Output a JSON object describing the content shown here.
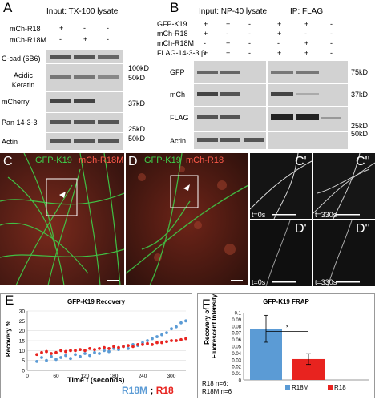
{
  "panel_a": {
    "label": "A",
    "title": "Input: TX-100 lysate",
    "rows": [
      {
        "name": "mCh-R18",
        "marks": [
          "+",
          "-",
          "-"
        ]
      },
      {
        "name": "mCh-R18M",
        "marks": [
          "-",
          "+",
          "-"
        ]
      }
    ],
    "blots": [
      "C-cad (6B6)",
      "Acidic Keratin",
      "mCherry",
      "Pan 14-3-3",
      "Actin"
    ],
    "markers": [
      "100kD",
      "50kD",
      "37kD",
      "25kD",
      "50kD"
    ]
  },
  "panel_b": {
    "label": "B",
    "title_input": "Input: NP-40 lysate",
    "title_ip": "IP: FLAG",
    "rows": [
      {
        "name": "GFP-K19",
        "marks": [
          "+",
          "+",
          "-",
          "+",
          "+",
          "-"
        ]
      },
      {
        "name": "mCh-R18",
        "marks": [
          "+",
          "-",
          "-",
          "+",
          "-",
          "-"
        ]
      },
      {
        "name": "mCh-R18M",
        "marks": [
          "-",
          "+",
          "-",
          "-",
          "+",
          "-"
        ]
      },
      {
        "name": "FLAG-14-3-3 β",
        "marks": [
          "+",
          "+",
          "-",
          "+",
          "+",
          "-"
        ]
      }
    ],
    "blots": [
      "GFP",
      "mCh",
      "FLAG",
      "Actin"
    ],
    "markers": [
      "75kD",
      "37kD",
      "25kD",
      "50kD"
    ]
  },
  "panel_c": {
    "label": "C",
    "caption_green": "GFP-K19",
    "caption_red": "mCh-R18M"
  },
  "panel_d": {
    "label": "D",
    "caption_green": "GFP-K19",
    "caption_red": "mCh-R18"
  },
  "insets": [
    {
      "label": "C'",
      "time": "t=0s"
    },
    {
      "label": "C''",
      "time": "t=330s"
    },
    {
      "label": "D'",
      "time": "t=0s"
    },
    {
      "label": "D''",
      "time": "t=330s"
    }
  ],
  "panel_e": {
    "label": "E",
    "title": "GFP-K19 Recovery",
    "ylabel": "Recovery %",
    "xlabel": "Time t (seconds)",
    "legend_a": "R18M",
    "legend_sep": ";",
    "legend_b": "R18"
  },
  "panel_f": {
    "label": "F",
    "title": "GFP-K19 FRAP",
    "ylabel": "Recovery of Fluorescent Intensity",
    "star": "*",
    "note_1": "R18 n=6;",
    "note_2": "R18M n=6"
  },
  "colors": {
    "r18m": "#5b9bd5",
    "r18": "#e8231f",
    "green": "#3fd24a",
    "red": "#ff5a4a"
  },
  "chart_data": [
    {
      "type": "scatter",
      "title": "GFP-K19 Recovery",
      "xlabel": "Time t (seconds)",
      "ylabel": "Recovery %",
      "xlim": [
        0,
        330
      ],
      "ylim": [
        0,
        30
      ],
      "x_ticks": [
        0,
        60,
        120,
        180,
        240,
        300
      ],
      "y_ticks": [
        0,
        5,
        10,
        15,
        20,
        25,
        30
      ],
      "series": [
        {
          "name": "R18M",
          "color": "#5b9bd5",
          "x": [
            20,
            30,
            40,
            50,
            60,
            70,
            80,
            90,
            100,
            110,
            120,
            130,
            140,
            150,
            160,
            170,
            180,
            190,
            200,
            210,
            220,
            230,
            240,
            250,
            260,
            270,
            280,
            290,
            300,
            310,
            320,
            330
          ],
          "y": [
            4.5,
            6.5,
            5,
            7,
            5.5,
            6.5,
            7.5,
            6,
            8,
            7,
            8.5,
            7.5,
            9,
            8.5,
            10,
            9.5,
            11,
            10.5,
            12,
            11,
            13,
            12.5,
            14,
            15,
            16,
            17,
            18,
            19,
            21,
            22,
            24,
            25
          ]
        },
        {
          "name": "R18",
          "color": "#e8231f",
          "x": [
            20,
            30,
            40,
            50,
            60,
            70,
            80,
            90,
            100,
            110,
            120,
            130,
            140,
            150,
            160,
            170,
            180,
            190,
            200,
            210,
            220,
            230,
            240,
            250,
            260,
            270,
            280,
            290,
            300,
            310,
            320,
            330
          ],
          "y": [
            8,
            9,
            9.5,
            8.5,
            9,
            10,
            9.5,
            10,
            10,
            10.5,
            10,
            11,
            10.5,
            11,
            11.5,
            11,
            12,
            11.5,
            12,
            12.5,
            12,
            13,
            13,
            13.5,
            13,
            14,
            14,
            14.5,
            15,
            15,
            15.5,
            16
          ]
        }
      ]
    },
    {
      "type": "bar",
      "title": "GFP-K19 FRAP",
      "ylabel": "Recovery of Fluorescent Intensity",
      "categories": [
        "R18M",
        "R18"
      ],
      "values": [
        0.076,
        0.031
      ],
      "errors": [
        0.02,
        0.008
      ],
      "colors": [
        "#5b9bd5",
        "#e8231f"
      ],
      "ylim": [
        0,
        0.1
      ],
      "y_ticks": [
        0,
        0.01,
        0.02,
        0.03,
        0.04,
        0.05,
        0.06,
        0.07,
        0.08,
        0.09,
        0.1
      ]
    }
  ]
}
